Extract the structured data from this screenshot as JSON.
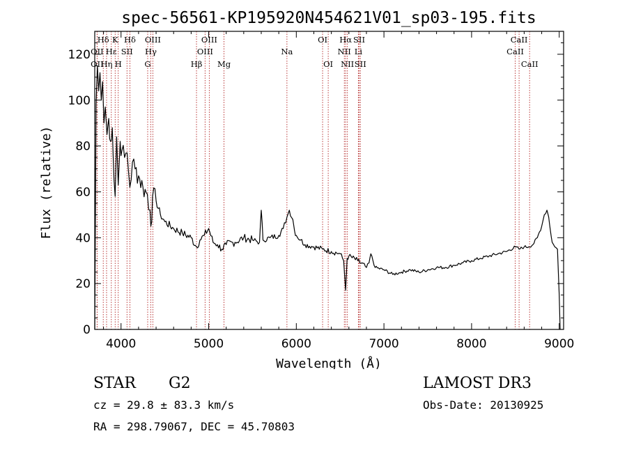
{
  "chart_data": {
    "type": "line",
    "title": "spec-56561-KP195920N454621V01_sp03-195.fits",
    "xlabel": "Wavelength (Å)",
    "ylabel": "Flux (relative)",
    "xlim": [
      3700,
      9050
    ],
    "ylim": [
      0,
      130
    ],
    "x_ticks": [
      4000,
      5000,
      6000,
      7000,
      8000,
      9000
    ],
    "y_ticks": [
      0,
      20,
      40,
      60,
      80,
      100,
      120
    ],
    "series": [
      {
        "name": "flux",
        "x": [
          3700,
          3715,
          3730,
          3745,
          3760,
          3775,
          3790,
          3805,
          3820,
          3840,
          3860,
          3880,
          3900,
          3920,
          3933,
          3950,
          3968,
          3990,
          4010,
          4040,
          4070,
          4101,
          4130,
          4160,
          4200,
          4250,
          4300,
          4330,
          4340,
          4360,
          4400,
          4450,
          4500,
          4600,
          4700,
          4800,
          4861,
          4900,
          4950,
          5000,
          5050,
          5100,
          5150,
          5200,
          5300,
          5400,
          5500,
          5580,
          5600,
          5620,
          5700,
          5800,
          5850,
          5893,
          5920,
          5960,
          5980,
          6000,
          6050,
          6100,
          6200,
          6300,
          6400,
          6500,
          6540,
          6563,
          6580,
          6600,
          6700,
          6800,
          6830,
          6850,
          6900,
          7000,
          7100,
          7200,
          7300,
          7400,
          7500,
          7600,
          7700,
          7800,
          7900,
          8000,
          8100,
          8200,
          8300,
          8400,
          8500,
          8542,
          8600,
          8650,
          8700,
          8750,
          8800,
          8830,
          8860,
          8880,
          8900,
          8920,
          8950,
          8980,
          9000,
          9010
        ],
        "y": [
          0,
          98,
          115,
          104,
          112,
          100,
          108,
          90,
          97,
          85,
          92,
          82,
          88,
          65,
          58,
          84,
          63,
          82,
          78,
          75,
          77,
          62,
          73,
          70,
          67,
          62,
          59,
          52,
          45,
          58,
          56,
          50,
          47,
          44,
          42,
          40,
          36,
          39,
          41,
          44,
          38,
          37,
          35,
          37,
          38,
          40,
          39,
          38,
          52,
          39,
          40,
          41,
          44,
          49,
          52,
          48,
          43,
          41,
          39,
          37,
          36,
          35,
          34,
          33,
          30,
          17,
          31,
          32,
          30,
          27,
          29,
          33,
          27,
          26,
          24,
          25,
          26,
          25,
          26,
          27,
          27,
          28,
          29,
          30,
          31,
          32,
          33,
          34,
          36,
          35,
          36,
          36,
          37,
          40,
          45,
          50,
          52,
          49,
          43,
          38,
          36,
          35,
          15,
          0
        ]
      }
    ],
    "lines_top": [
      {
        "label": "Hδ",
        "x": 3797
      },
      {
        "label": "K",
        "x": 3933
      },
      {
        "label": "Hδ",
        "x": 4101
      },
      {
        "label": "OIII",
        "x": 4363
      },
      {
        "label": "OIII",
        "x": 5007
      },
      {
        "label": "OI",
        "x": 6300
      },
      {
        "label": "Hα",
        "x": 6563
      },
      {
        "label": "SII",
        "x": 6717
      },
      {
        "label": "CaII",
        "x": 8542
      }
    ],
    "lines_mid": [
      {
        "label": "OII",
        "x": 3727
      },
      {
        "label": "Hε",
        "x": 3889
      },
      {
        "label": "SII",
        "x": 4068
      },
      {
        "label": "Hγ",
        "x": 4340
      },
      {
        "label": "OIII",
        "x": 4959
      },
      {
        "label": "Na",
        "x": 5893
      },
      {
        "label": "NII",
        "x": 6548
      },
      {
        "label": "Li",
        "x": 6708
      },
      {
        "label": "CaII",
        "x": 8498
      }
    ],
    "lines_low": [
      {
        "label": "OII",
        "x": 3727
      },
      {
        "label": "Hη",
        "x": 3835
      },
      {
        "label": "H",
        "x": 3968
      },
      {
        "label": "G",
        "x": 4304
      },
      {
        "label": "Hβ",
        "x": 4861
      },
      {
        "label": "Mg",
        "x": 5175
      },
      {
        "label": "OI",
        "x": 6364
      },
      {
        "label": "NII",
        "x": 6583
      },
      {
        "label": "SII",
        "x": 6731
      },
      {
        "label": "CaII",
        "x": 8662
      }
    ]
  },
  "info": {
    "class": "STAR",
    "subclass": "G2",
    "survey": "LAMOST DR3",
    "cz": "cz = 29.8 ± 83.3 km/s",
    "obs_date": "Obs-Date: 20130925",
    "coords": "RA = 298.79067, DEC =  45.70803"
  }
}
